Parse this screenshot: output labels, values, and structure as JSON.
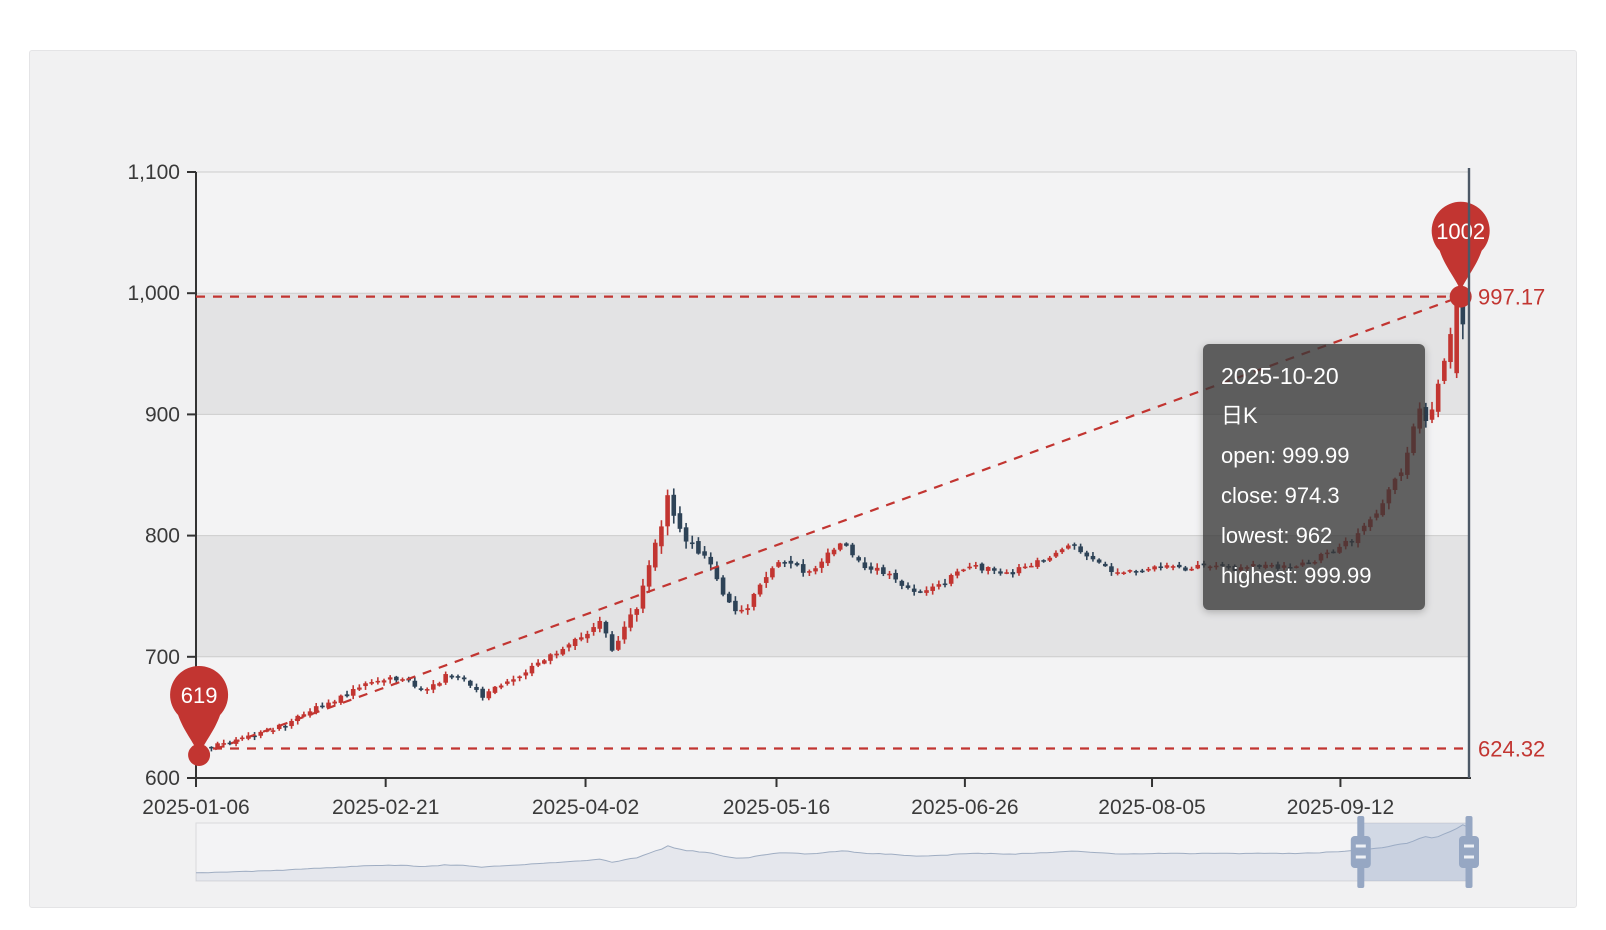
{
  "chart_data": {
    "type": "candlestick",
    "series_name": "日K",
    "x_axis": {
      "ticks": [
        {
          "label": "2025-01-06",
          "pos": 0.0
        },
        {
          "label": "2025-02-21",
          "pos": 0.149
        },
        {
          "label": "2025-04-02",
          "pos": 0.306
        },
        {
          "label": "2025-05-16",
          "pos": 0.456
        },
        {
          "label": "2025-06-26",
          "pos": 0.604
        },
        {
          "label": "2025-08-05",
          "pos": 0.751
        },
        {
          "label": "2025-09-12",
          "pos": 0.899
        }
      ]
    },
    "y_axis": {
      "min": 600,
      "max": 1100,
      "step": 100,
      "tick_labels": [
        "600",
        "700",
        "800",
        "900",
        "1,000",
        "1,100"
      ]
    },
    "candle_count": 206,
    "close_keyframes": [
      [
        0,
        624
      ],
      [
        6,
        630
      ],
      [
        14,
        644
      ],
      [
        20,
        660
      ],
      [
        26,
        674
      ],
      [
        31,
        684
      ],
      [
        34,
        680
      ],
      [
        37,
        672
      ],
      [
        40,
        684
      ],
      [
        43,
        680
      ],
      [
        46,
        668
      ],
      [
        50,
        678
      ],
      [
        54,
        692
      ],
      [
        58,
        703
      ],
      [
        62,
        716
      ],
      [
        65,
        730
      ],
      [
        67,
        706
      ],
      [
        69,
        726
      ],
      [
        71,
        742
      ],
      [
        73,
        774
      ],
      [
        75,
        812
      ],
      [
        76,
        830
      ],
      [
        77,
        815
      ],
      [
        79,
        795
      ],
      [
        81,
        788
      ],
      [
        83,
        775
      ],
      [
        85,
        752
      ],
      [
        87,
        736
      ],
      [
        89,
        742
      ],
      [
        91,
        758
      ],
      [
        93,
        772
      ],
      [
        95,
        780
      ],
      [
        98,
        770
      ],
      [
        101,
        778
      ],
      [
        104,
        795
      ],
      [
        106,
        786
      ],
      [
        108,
        775
      ],
      [
        111,
        770
      ],
      [
        113,
        762
      ],
      [
        116,
        752
      ],
      [
        119,
        756
      ],
      [
        122,
        766
      ],
      [
        125,
        775
      ],
      [
        128,
        772
      ],
      [
        131,
        768
      ],
      [
        134,
        774
      ],
      [
        137,
        780
      ],
      [
        140,
        788
      ],
      [
        142,
        792
      ],
      [
        145,
        780
      ],
      [
        148,
        772
      ],
      [
        152,
        770
      ],
      [
        156,
        774
      ],
      [
        160,
        772
      ],
      [
        164,
        776
      ],
      [
        168,
        772
      ],
      [
        172,
        776
      ],
      [
        176,
        774
      ],
      [
        180,
        778
      ],
      [
        184,
        788
      ],
      [
        188,
        800
      ],
      [
        191,
        820
      ],
      [
        193,
        838
      ],
      [
        195,
        855
      ],
      [
        197,
        888
      ],
      [
        198,
        905
      ],
      [
        199,
        893
      ],
      [
        200,
        908
      ],
      [
        201,
        925
      ],
      [
        202,
        945
      ],
      [
        203,
        962
      ],
      [
        204,
        996
      ],
      [
        205,
        974.3
      ]
    ],
    "volatility_keyframes": [
      [
        0,
        3
      ],
      [
        30,
        3.8
      ],
      [
        60,
        4
      ],
      [
        70,
        6
      ],
      [
        76,
        9
      ],
      [
        82,
        6
      ],
      [
        88,
        6
      ],
      [
        95,
        4.5
      ],
      [
        105,
        5
      ],
      [
        115,
        4.5
      ],
      [
        130,
        3.5
      ],
      [
        150,
        3.5
      ],
      [
        170,
        3.5
      ],
      [
        185,
        4
      ],
      [
        193,
        6
      ],
      [
        199,
        7
      ],
      [
        203,
        8
      ],
      [
        205,
        8
      ]
    ],
    "candle_overrides": {
      "0": {
        "open": 622,
        "close": 624.32,
        "low": 619,
        "high": 627
      },
      "204": {
        "open": 934,
        "close": 996,
        "low": 930,
        "high": 1002
      },
      "205": {
        "open": 999.99,
        "close": 974.3,
        "low": 962,
        "high": 999.99
      }
    },
    "mark_points": [
      {
        "name": "max",
        "label": "1002",
        "value": 1002,
        "index": 204
      },
      {
        "name": "min",
        "label": "619",
        "value": 619,
        "index": 0
      }
    ],
    "mark_lines": [
      {
        "name": "upper",
        "value": 997.17,
        "label": "997.17"
      },
      {
        "name": "lower",
        "value": 624.32,
        "label": "624.32"
      }
    ],
    "trend_line": {
      "from_index": 0,
      "from_value": 619,
      "to_index": 204,
      "to_value": 997.17
    },
    "colors": {
      "bullish": "#c23531",
      "bearish": "#2e4357",
      "mark": "#c23531",
      "axis": "#333333",
      "grid_line": "#cccccc",
      "band_dark": "rgba(200,200,200,0.32)",
      "band_light": "rgba(250,250,250,0.3)",
      "crosshair": "#4c5866",
      "slider_fill": "rgba(150,170,200,0.35)",
      "slider_handle": "#96a7c3",
      "slider_line": "#9fadc2"
    },
    "data_zoom": {
      "window_start": 0.915,
      "window_end": 1.0
    }
  },
  "tooltip": {
    "date": "2025-10-20",
    "series": "日K",
    "lines": [
      "open: 999.99",
      "close: 974.3",
      "lowest: 962",
      "highest: 999.99"
    ]
  }
}
